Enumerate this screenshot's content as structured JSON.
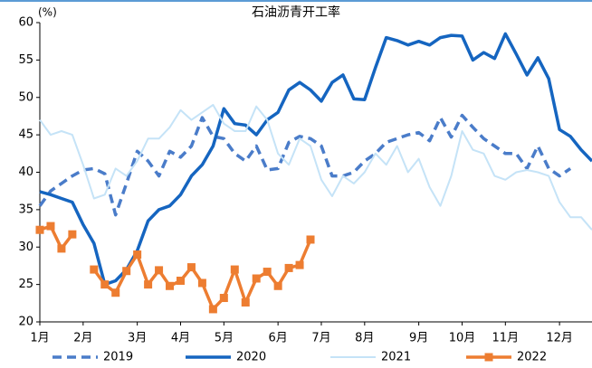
{
  "chart_data": {
    "type": "line",
    "title": "石油沥青开工率",
    "y_unit": "(%)",
    "categories": [
      "1月",
      null,
      null,
      null,
      "2月",
      null,
      null,
      null,
      null,
      "3月",
      null,
      null,
      null,
      "4月",
      null,
      null,
      null,
      "5月",
      null,
      null,
      null,
      null,
      "6月",
      null,
      null,
      null,
      "7月",
      null,
      null,
      null,
      "8月",
      null,
      null,
      null,
      null,
      "9月",
      null,
      null,
      null,
      "10月",
      null,
      null,
      null,
      "11月",
      null,
      null,
      null,
      null,
      "12月",
      null,
      null,
      null
    ],
    "series": [
      {
        "name": "2019",
        "color": "#4a7cc9",
        "dash": true,
        "values": [
          35.5,
          37.5,
          38.5,
          39.5,
          40.3,
          40.5,
          39.8,
          34.3,
          38.5,
          42.8,
          41.5,
          39.5,
          42.8,
          42,
          43.5,
          47.3,
          44.8,
          44.5,
          42.5,
          41.5,
          43.5,
          40.3,
          40.5,
          44,
          44.8,
          44.5,
          43.5,
          39.5,
          39.5,
          40,
          41.5,
          42.5,
          44,
          44.5,
          45,
          45.3,
          44.2,
          47.3,
          44.7,
          47.6,
          46,
          44.5,
          43.5,
          42.5,
          42.5,
          40.5,
          43.5,
          40.5,
          39.5,
          40.5,
          null,
          null
        ]
      },
      {
        "name": "2020",
        "color": "#1565c0",
        "values": [
          37.4,
          37,
          36.5,
          36,
          33,
          30.5,
          25,
          25.5,
          27,
          29.5,
          33.5,
          35,
          35.5,
          37,
          39.5,
          41,
          43.5,
          48.5,
          46.5,
          46.3,
          45,
          47,
          48,
          51,
          52,
          51,
          49.5,
          52,
          53,
          49.8,
          49.7,
          54,
          58,
          57.6,
          57,
          57.5,
          57,
          58,
          58.3,
          58.2,
          55,
          56,
          55.2,
          58.5,
          55.8,
          53,
          55.3,
          52.5,
          45.7,
          44.8,
          43,
          41.5
        ]
      },
      {
        "name": "2021",
        "color": "#c5e3f7",
        "values": [
          47,
          45,
          45.5,
          45,
          41,
          36.5,
          37,
          40.5,
          39.5,
          41.5,
          44.5,
          44.5,
          46,
          48.3,
          47,
          48,
          49,
          46.5,
          45.5,
          45.5,
          48.8,
          47,
          42.5,
          41,
          44.5,
          43.5,
          39,
          36.8,
          39.5,
          38.5,
          40,
          42.5,
          41,
          43.5,
          40,
          41.8,
          38,
          35.5,
          39.5,
          45.5,
          43,
          42.5,
          39.5,
          39,
          40,
          40.3,
          40,
          39.5,
          36,
          34,
          34,
          32.3
        ]
      },
      {
        "name": "2022",
        "color": "#ed7d31",
        "marker": "square",
        "values": [
          32.3,
          32.8,
          29.8,
          31.7,
          null,
          27,
          25,
          23.9,
          26.8,
          29,
          25,
          26.9,
          24.8,
          25.5,
          27.3,
          25.2,
          21.7,
          23.2,
          27,
          22.6,
          25.8,
          26.7,
          24.8,
          27.2,
          27.6,
          31,
          null,
          null,
          null,
          null,
          null,
          null,
          null,
          null,
          null,
          null,
          null,
          null,
          null,
          null,
          null,
          null,
          null,
          null,
          null,
          null,
          null,
          null,
          null,
          null,
          null,
          null
        ]
      }
    ],
    "ylim": [
      20,
      60
    ],
    "yticks": [
      20,
      25,
      30,
      35,
      40,
      45,
      50,
      55,
      60
    ],
    "legend": "bottom"
  }
}
